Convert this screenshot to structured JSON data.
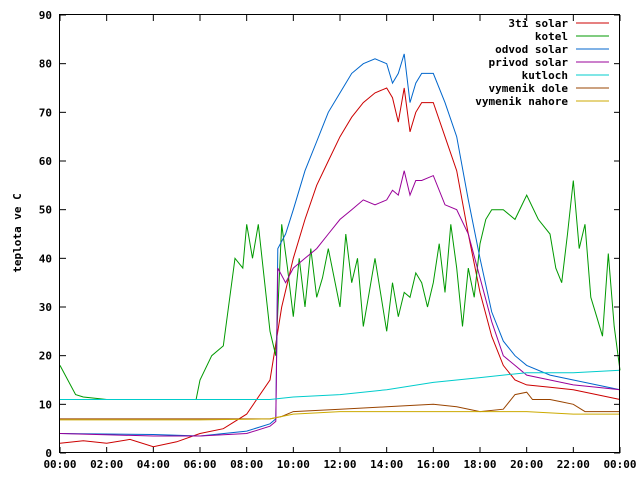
{
  "chart_data": {
    "type": "line",
    "xlabel": "",
    "ylabel": "teplota ve C",
    "xlim": [
      "00:00",
      "24:00"
    ],
    "ylim": [
      0,
      90
    ],
    "xticks": [
      "00:00",
      "02:00",
      "04:00",
      "06:00",
      "08:00",
      "10:00",
      "12:00",
      "14:00",
      "16:00",
      "18:00",
      "20:00",
      "22:00",
      "00:00"
    ],
    "yticks": [
      0,
      10,
      20,
      30,
      40,
      50,
      60,
      70,
      80,
      90
    ],
    "grid": false,
    "legend": "top-right",
    "series": [
      {
        "name": "3ti solar",
        "color": "#cc0000",
        "points": [
          [
            "00:00",
            2
          ],
          [
            "01:00",
            2.5
          ],
          [
            "02:00",
            2
          ],
          [
            "03:00",
            2.8
          ],
          [
            "04:00",
            1.3
          ],
          [
            "05:00",
            2.3
          ],
          [
            "06:00",
            4
          ],
          [
            "07:00",
            5
          ],
          [
            "08:00",
            8
          ],
          [
            "09:00",
            15
          ],
          [
            "09:30",
            30
          ],
          [
            "10:00",
            40
          ],
          [
            "10:30",
            48
          ],
          [
            "11:00",
            55
          ],
          [
            "11:30",
            60
          ],
          [
            "12:00",
            65
          ],
          [
            "12:30",
            69
          ],
          [
            "13:00",
            72
          ],
          [
            "13:30",
            74
          ],
          [
            "14:00",
            75
          ],
          [
            "14:15",
            73
          ],
          [
            "14:30",
            68
          ],
          [
            "14:45",
            75
          ],
          [
            "15:00",
            66
          ],
          [
            "15:15",
            70
          ],
          [
            "15:30",
            72
          ],
          [
            "16:00",
            72
          ],
          [
            "16:30",
            65
          ],
          [
            "17:00",
            58
          ],
          [
            "17:30",
            45
          ],
          [
            "18:00",
            33
          ],
          [
            "18:30",
            24
          ],
          [
            "19:00",
            18
          ],
          [
            "19:30",
            15
          ],
          [
            "20:00",
            14
          ],
          [
            "21:00",
            13.5
          ],
          [
            "22:00",
            13
          ],
          [
            "23:00",
            12
          ],
          [
            "24:00",
            11
          ]
        ]
      },
      {
        "name": "kotel",
        "color": "#009900",
        "points": [
          [
            "00:00",
            18
          ],
          [
            "00:40",
            12
          ],
          [
            "01:00",
            11.5
          ],
          [
            "02:00",
            11
          ],
          [
            "03:00",
            11
          ],
          [
            "04:00",
            11
          ],
          [
            "05:00",
            11
          ],
          [
            "05:50",
            11
          ],
          [
            "06:00",
            15
          ],
          [
            "06:30",
            20
          ],
          [
            "07:00",
            22
          ],
          [
            "07:30",
            40
          ],
          [
            "07:50",
            38
          ],
          [
            "08:00",
            47
          ],
          [
            "08:15",
            40
          ],
          [
            "08:30",
            47
          ],
          [
            "09:00",
            25
          ],
          [
            "09:15",
            20
          ],
          [
            "09:30",
            47
          ],
          [
            "09:45",
            38
          ],
          [
            "10:00",
            28
          ],
          [
            "10:15",
            40
          ],
          [
            "10:30",
            30
          ],
          [
            "10:45",
            42
          ],
          [
            "11:00",
            32
          ],
          [
            "11:15",
            36
          ],
          [
            "11:30",
            42
          ],
          [
            "12:00",
            30
          ],
          [
            "12:15",
            45
          ],
          [
            "12:30",
            35
          ],
          [
            "12:45",
            40
          ],
          [
            "13:00",
            26
          ],
          [
            "13:15",
            33
          ],
          [
            "13:30",
            40
          ],
          [
            "14:00",
            25
          ],
          [
            "14:15",
            35
          ],
          [
            "14:30",
            28
          ],
          [
            "14:45",
            33
          ],
          [
            "15:00",
            32
          ],
          [
            "15:15",
            37
          ],
          [
            "15:30",
            35
          ],
          [
            "15:45",
            30
          ],
          [
            "16:00",
            35
          ],
          [
            "16:15",
            43
          ],
          [
            "16:30",
            33
          ],
          [
            "16:45",
            47
          ],
          [
            "17:00",
            38
          ],
          [
            "17:15",
            26
          ],
          [
            "17:30",
            38
          ],
          [
            "17:45",
            32
          ],
          [
            "18:00",
            43
          ],
          [
            "18:15",
            48
          ],
          [
            "18:30",
            50
          ],
          [
            "19:00",
            50
          ],
          [
            "19:30",
            48
          ],
          [
            "20:00",
            53
          ],
          [
            "20:30",
            48
          ],
          [
            "21:00",
            45
          ],
          [
            "21:15",
            38
          ],
          [
            "21:30",
            35
          ],
          [
            "21:45",
            45
          ],
          [
            "22:00",
            56
          ],
          [
            "22:15",
            42
          ],
          [
            "22:30",
            47
          ],
          [
            "22:45",
            32
          ],
          [
            "23:00",
            28
          ],
          [
            "23:15",
            24
          ],
          [
            "23:30",
            41
          ],
          [
            "23:45",
            26
          ],
          [
            "24:00",
            17
          ]
        ]
      },
      {
        "name": "odvod solar",
        "color": "#0066cc",
        "points": [
          [
            "00:00",
            4
          ],
          [
            "04:00",
            3.8
          ],
          [
            "06:00",
            3.5
          ],
          [
            "08:00",
            4.5
          ],
          [
            "09:00",
            6
          ],
          [
            "09:15",
            7
          ],
          [
            "09:20",
            42
          ],
          [
            "09:40",
            45
          ],
          [
            "10:00",
            50
          ],
          [
            "10:30",
            58
          ],
          [
            "11:00",
            64
          ],
          [
            "11:30",
            70
          ],
          [
            "12:00",
            74
          ],
          [
            "12:30",
            78
          ],
          [
            "13:00",
            80
          ],
          [
            "13:30",
            81
          ],
          [
            "14:00",
            80
          ],
          [
            "14:15",
            76
          ],
          [
            "14:30",
            78
          ],
          [
            "14:45",
            82
          ],
          [
            "15:00",
            72
          ],
          [
            "15:15",
            76
          ],
          [
            "15:30",
            78
          ],
          [
            "16:00",
            78
          ],
          [
            "16:30",
            72
          ],
          [
            "17:00",
            65
          ],
          [
            "17:30",
            52
          ],
          [
            "18:00",
            40
          ],
          [
            "18:30",
            29
          ],
          [
            "19:00",
            23
          ],
          [
            "19:30",
            20
          ],
          [
            "20:00",
            18
          ],
          [
            "21:00",
            16
          ],
          [
            "22:00",
            15
          ],
          [
            "23:00",
            14
          ],
          [
            "24:00",
            13
          ]
        ]
      },
      {
        "name": "privod solar",
        "color": "#990099",
        "points": [
          [
            "00:00",
            4
          ],
          [
            "04:00",
            3.5
          ],
          [
            "06:00",
            3.5
          ],
          [
            "08:00",
            4
          ],
          [
            "09:00",
            5.5
          ],
          [
            "09:15",
            6.5
          ],
          [
            "09:20",
            38
          ],
          [
            "09:40",
            35
          ],
          [
            "10:00",
            38
          ],
          [
            "10:30",
            40
          ],
          [
            "11:00",
            42
          ],
          [
            "11:30",
            45
          ],
          [
            "12:00",
            48
          ],
          [
            "12:30",
            50
          ],
          [
            "13:00",
            52
          ],
          [
            "13:30",
            51
          ],
          [
            "14:00",
            52
          ],
          [
            "14:15",
            54
          ],
          [
            "14:30",
            53
          ],
          [
            "14:45",
            58
          ],
          [
            "15:00",
            53
          ],
          [
            "15:15",
            56
          ],
          [
            "15:30",
            56
          ],
          [
            "16:00",
            57
          ],
          [
            "16:30",
            51
          ],
          [
            "17:00",
            50
          ],
          [
            "17:30",
            45
          ],
          [
            "18:00",
            36
          ],
          [
            "18:30",
            27
          ],
          [
            "19:00",
            20
          ],
          [
            "19:30",
            18
          ],
          [
            "20:00",
            16
          ],
          [
            "21:00",
            15
          ],
          [
            "22:00",
            14
          ],
          [
            "23:00",
            13.5
          ],
          [
            "24:00",
            13
          ]
        ]
      },
      {
        "name": "kutloch",
        "color": "#00cccc",
        "points": [
          [
            "00:00",
            11
          ],
          [
            "06:00",
            11
          ],
          [
            "09:00",
            11
          ],
          [
            "10:00",
            11.5
          ],
          [
            "12:00",
            12
          ],
          [
            "14:00",
            13
          ],
          [
            "16:00",
            14.5
          ],
          [
            "18:00",
            15.5
          ],
          [
            "20:00",
            16.5
          ],
          [
            "22:00",
            16.5
          ],
          [
            "24:00",
            17
          ]
        ]
      },
      {
        "name": "vymenik dole",
        "color": "#994400",
        "points": [
          [
            "00:00",
            7
          ],
          [
            "09:00",
            7
          ],
          [
            "09:30",
            7.5
          ],
          [
            "10:00",
            8.5
          ],
          [
            "12:00",
            9
          ],
          [
            "14:00",
            9.5
          ],
          [
            "16:00",
            10
          ],
          [
            "17:00",
            9.5
          ],
          [
            "18:00",
            8.5
          ],
          [
            "19:00",
            9
          ],
          [
            "19:30",
            12
          ],
          [
            "20:00",
            12.5
          ],
          [
            "20:15",
            11
          ],
          [
            "21:00",
            11
          ],
          [
            "21:30",
            10.5
          ],
          [
            "22:00",
            10
          ],
          [
            "22:30",
            8.5
          ],
          [
            "24:00",
            8.5
          ]
        ]
      },
      {
        "name": "vymenik nahore",
        "color": "#ccaa00",
        "points": [
          [
            "00:00",
            6.8
          ],
          [
            "06:00",
            6.8
          ],
          [
            "09:00",
            7
          ],
          [
            "10:00",
            8
          ],
          [
            "12:00",
            8.5
          ],
          [
            "14:00",
            8.5
          ],
          [
            "16:00",
            8.5
          ],
          [
            "18:00",
            8.5
          ],
          [
            "20:00",
            8.5
          ],
          [
            "22:00",
            8
          ],
          [
            "24:00",
            8
          ]
        ]
      }
    ]
  }
}
